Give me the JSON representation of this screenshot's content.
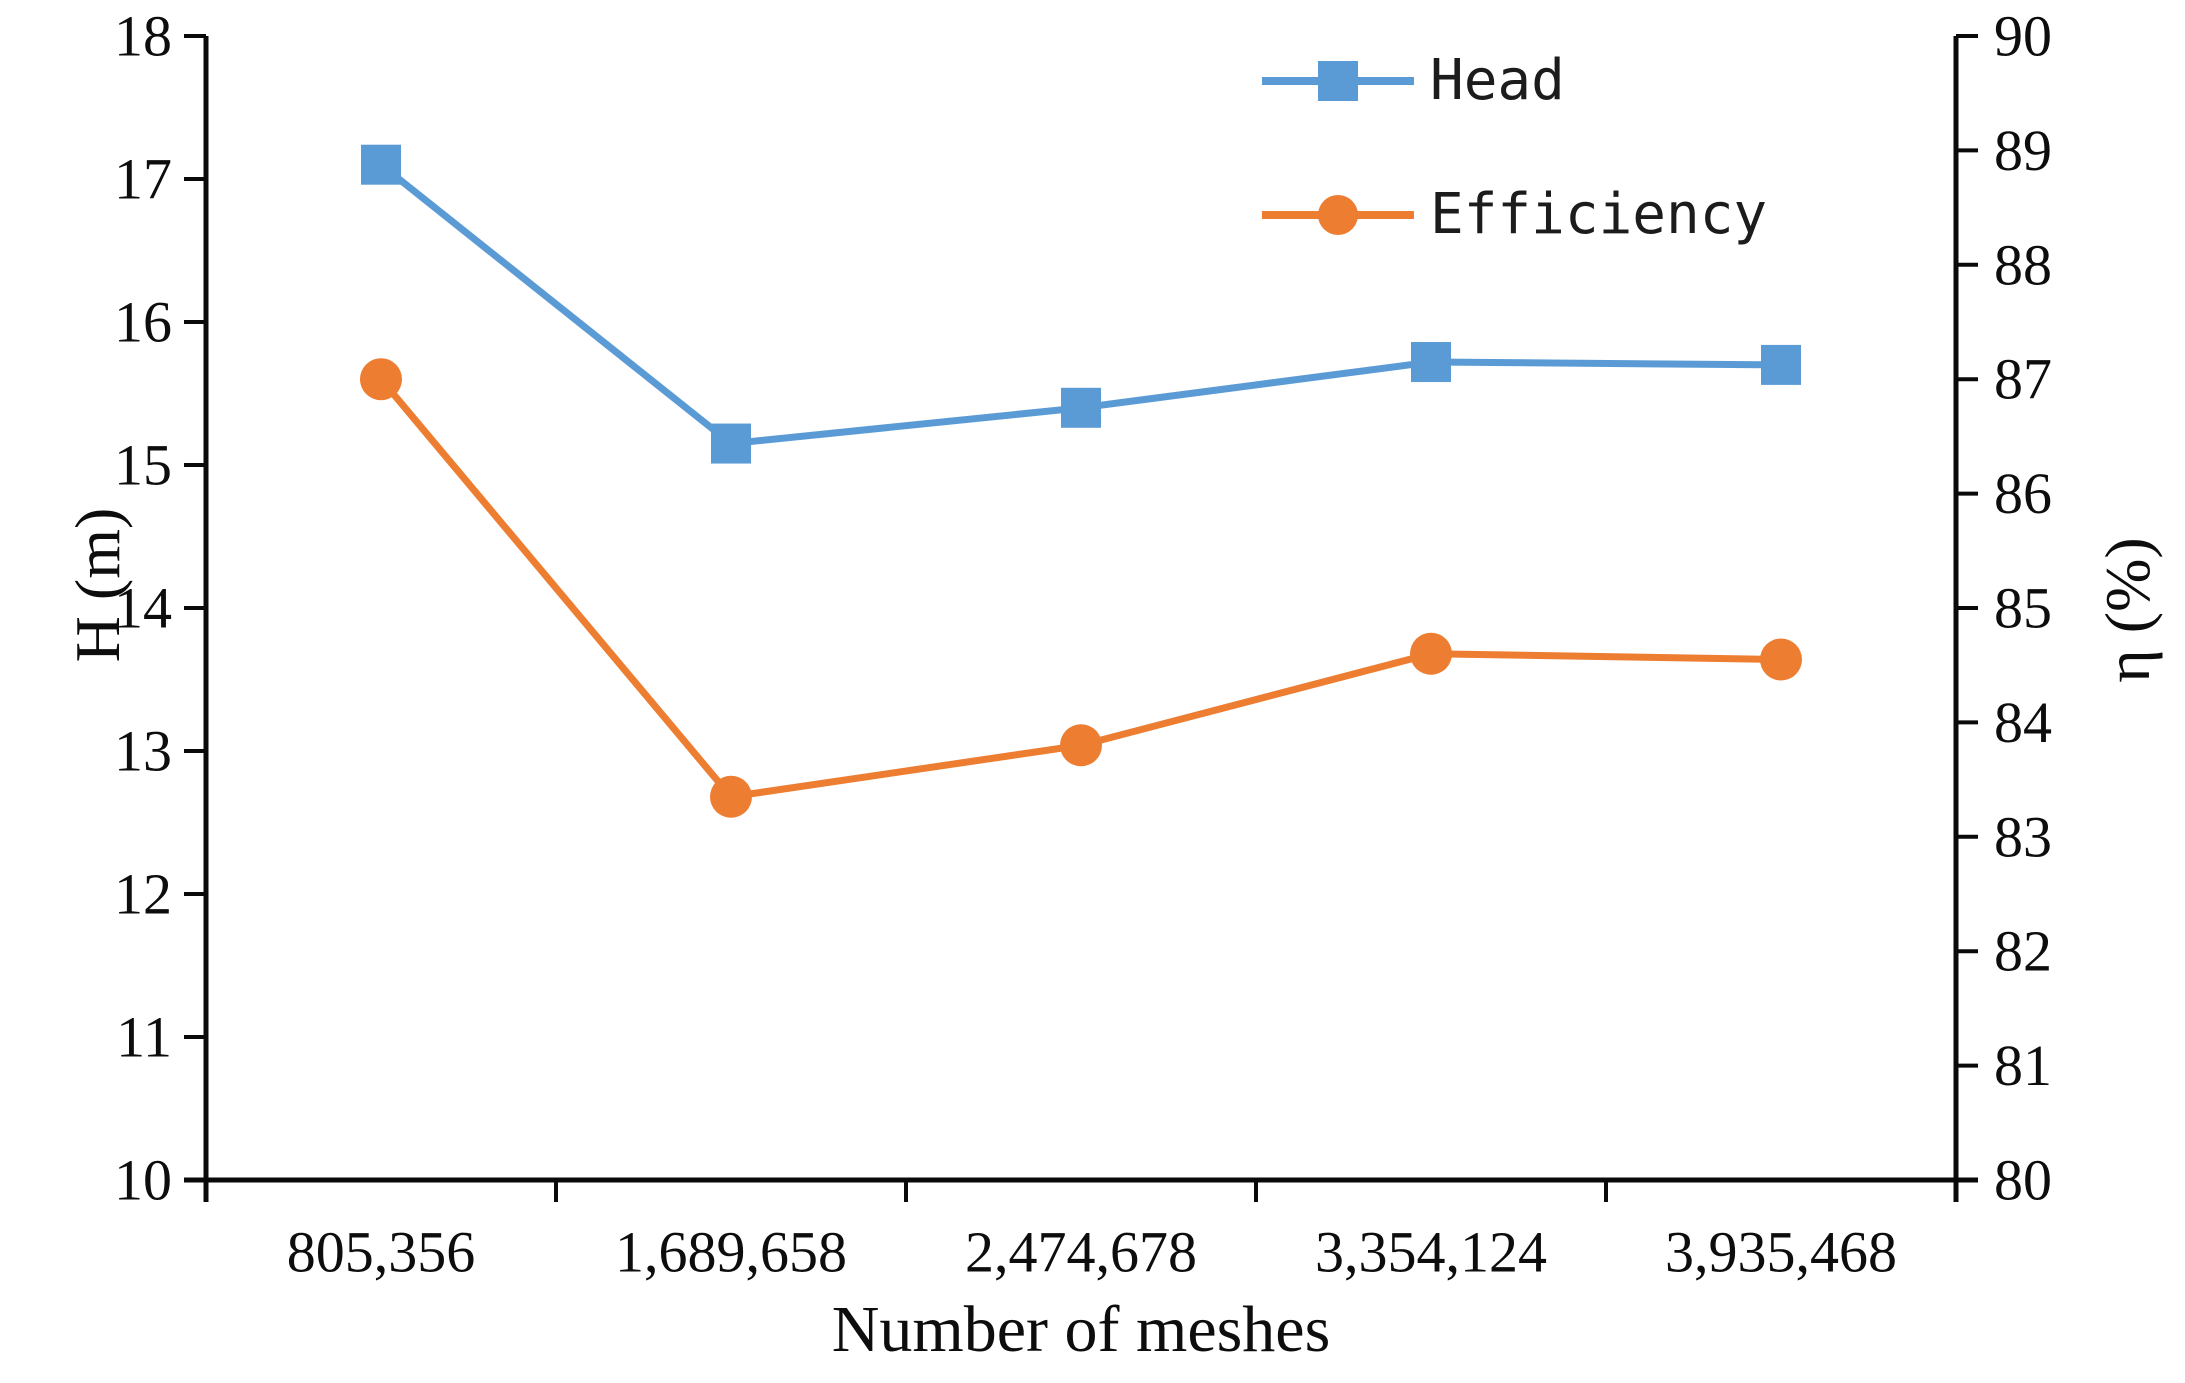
{
  "chart_data": {
    "type": "line",
    "title": "",
    "xlabel": "Number of meshes",
    "x_categories": [
      "805,356",
      "1,689,658",
      "2,474,678",
      "3,354,124",
      "3,935,468"
    ],
    "series": [
      {
        "name": "Head",
        "axis": "left",
        "color": "#5B9BD5",
        "marker": "square",
        "values": [
          17.1,
          15.15,
          15.4,
          15.72,
          15.7
        ]
      },
      {
        "name": "Efficiency",
        "axis": "right",
        "color": "#ED7D31",
        "marker": "circle",
        "values": [
          87.0,
          83.35,
          83.8,
          84.6,
          84.55
        ]
      }
    ],
    "left_axis": {
      "label": "H (m)",
      "min": 10,
      "max": 18,
      "ticks": [
        10,
        11,
        12,
        13,
        14,
        15,
        16,
        17,
        18
      ]
    },
    "right_axis": {
      "label": "η (%)",
      "min": 80,
      "max": 90,
      "ticks": [
        80,
        81,
        82,
        83,
        84,
        85,
        86,
        87,
        88,
        89,
        90
      ]
    },
    "legend_position": "top-right",
    "grid": "off",
    "axis_color": "#0a0a0a",
    "text_color": "#0d0d0d"
  }
}
